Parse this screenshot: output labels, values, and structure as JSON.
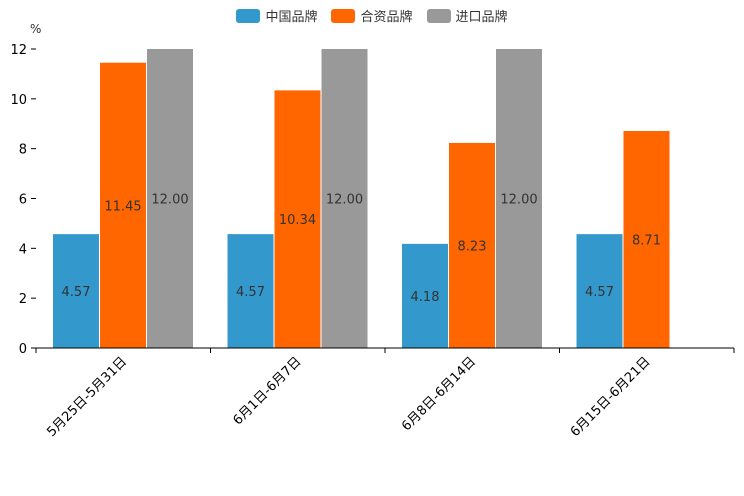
{
  "chart_data": {
    "type": "bar",
    "unit": "%",
    "categories": [
      "5月25日-5月31日",
      "6月1日-6月7日",
      "6月8日-6月14日",
      "6月15日-6月21日"
    ],
    "series": [
      {
        "name": "中国品牌",
        "color": "#3399cc",
        "values": [
          4.57,
          4.57,
          4.18,
          4.57
        ],
        "labels": [
          "4.57",
          "4.57",
          "4.18",
          "4.57"
        ]
      },
      {
        "name": "合资品牌",
        "color": "#ff6600",
        "values": [
          11.45,
          10.34,
          8.23,
          8.71
        ],
        "labels": [
          "11.45",
          "10.34",
          "8.23",
          "8.71"
        ]
      },
      {
        "name": "进口品牌",
        "color": "#999999",
        "values": [
          12.0,
          12.0,
          12.0,
          null
        ],
        "labels": [
          "12.00",
          "12.00",
          "12.00",
          null
        ]
      }
    ],
    "ylim": [
      0,
      12
    ],
    "yticks": [
      "0",
      "2",
      "4",
      "6",
      "8",
      "10",
      "12"
    ],
    "legend": "top-center"
  }
}
